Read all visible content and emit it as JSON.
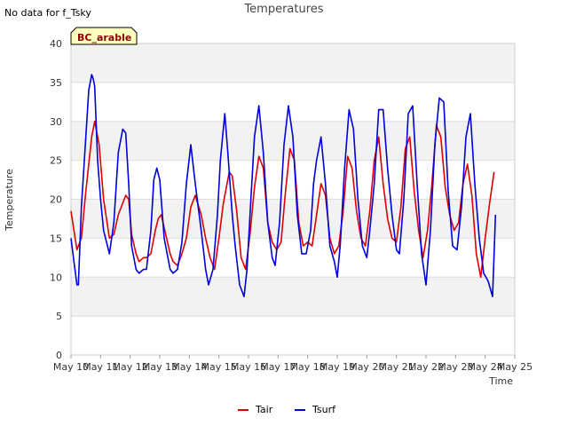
{
  "header": {
    "no_data_message": "No data for f_Tsky",
    "site_badge": "BC_arable"
  },
  "chart_data": {
    "type": "line",
    "title": "Temperatures",
    "xlabel": "Time",
    "ylabel": "Temperature",
    "ylim": [
      0,
      40
    ],
    "yticks": [
      0,
      5,
      10,
      15,
      20,
      25,
      30,
      35,
      40
    ],
    "xlim": [
      10,
      25
    ],
    "xticks": [
      10,
      11,
      12,
      13,
      14,
      15,
      16,
      17,
      18,
      19,
      20,
      21,
      22,
      23,
      24,
      25
    ],
    "xtick_labels": [
      "May 10",
      "May 11",
      "May 12",
      "May 13",
      "May 14",
      "May 15",
      "May 16",
      "May 17",
      "May 18",
      "May 19",
      "May 20",
      "May 21",
      "May 22",
      "May 23",
      "May 24",
      "May 25"
    ],
    "grid": true,
    "legend_position": "bottom-center",
    "series": [
      {
        "name": "Tair",
        "color": "#dd0000",
        "x": [
          10.0,
          10.1,
          10.2,
          10.35,
          10.5,
          10.6,
          10.7,
          10.8,
          10.95,
          11.1,
          11.3,
          11.45,
          11.6,
          11.75,
          11.85,
          11.95,
          12.05,
          12.2,
          12.3,
          12.45,
          12.55,
          12.7,
          12.85,
          12.95,
          13.05,
          13.2,
          13.35,
          13.45,
          13.6,
          13.75,
          13.9,
          14.05,
          14.2,
          14.4,
          14.55,
          14.7,
          14.85,
          15.0,
          15.15,
          15.35,
          15.45,
          15.6,
          15.75,
          15.9,
          16.05,
          16.2,
          16.35,
          16.5,
          16.65,
          16.8,
          16.95,
          17.1,
          17.25,
          17.4,
          17.55,
          17.7,
          17.85,
          18.0,
          18.15,
          18.3,
          18.45,
          18.6,
          18.75,
          18.9,
          19.05,
          19.2,
          19.35,
          19.5,
          19.65,
          19.8,
          19.95,
          20.1,
          20.25,
          20.4,
          20.55,
          20.7,
          20.85,
          21.0,
          21.15,
          21.3,
          21.45,
          21.6,
          21.75,
          21.9,
          22.05,
          22.2,
          22.35,
          22.5,
          22.65,
          22.8,
          22.95,
          23.1,
          23.25,
          23.4,
          23.55,
          23.7,
          23.85,
          24.0,
          24.15,
          24.3
        ],
        "y": [
          18.5,
          16.0,
          13.5,
          15.0,
          21.0,
          24.5,
          28.0,
          30.0,
          27.0,
          20.0,
          15.0,
          15.5,
          18.0,
          19.5,
          20.5,
          20.0,
          15.5,
          13.0,
          12.0,
          12.5,
          12.5,
          13.0,
          16.0,
          17.5,
          18.0,
          15.5,
          13.0,
          12.0,
          11.5,
          13.0,
          15.0,
          19.0,
          20.5,
          18.0,
          15.0,
          12.5,
          11.0,
          15.0,
          19.5,
          23.5,
          23.0,
          18.5,
          12.5,
          11.0,
          15.5,
          21.5,
          25.5,
          24.0,
          17.0,
          14.5,
          13.5,
          14.5,
          21.0,
          26.5,
          25.0,
          17.0,
          14.0,
          14.5,
          14.0,
          18.0,
          22.0,
          20.5,
          15.0,
          13.0,
          14.0,
          18.5,
          25.5,
          24.0,
          18.5,
          15.0,
          14.0,
          18.5,
          25.0,
          28.0,
          22.0,
          17.5,
          15.0,
          14.5,
          19.0,
          26.5,
          28.0,
          21.0,
          16.0,
          12.5,
          16.0,
          22.0,
          29.5,
          28.0,
          21.5,
          18.0,
          16.0,
          17.0,
          22.0,
          24.5,
          20.5,
          13.0,
          10.0,
          15.0,
          19.5,
          23.5
        ]
      },
      {
        "name": "Tsurf",
        "color": "#0000dd",
        "x": [
          10.0,
          10.1,
          10.2,
          10.25,
          10.35,
          10.5,
          10.6,
          10.7,
          10.75,
          10.8,
          10.9,
          11.0,
          11.1,
          11.3,
          11.45,
          11.6,
          11.75,
          11.85,
          11.95,
          12.05,
          12.2,
          12.3,
          12.45,
          12.55,
          12.7,
          12.8,
          12.9,
          13.0,
          13.15,
          13.35,
          13.45,
          13.6,
          13.75,
          13.9,
          14.05,
          14.2,
          14.4,
          14.55,
          14.65,
          14.8,
          14.95,
          15.05,
          15.2,
          15.3,
          15.45,
          15.55,
          15.7,
          15.85,
          15.95,
          16.05,
          16.2,
          16.35,
          16.5,
          16.65,
          16.8,
          16.9,
          17.05,
          17.2,
          17.35,
          17.5,
          17.65,
          17.8,
          17.95,
          18.1,
          18.2,
          18.3,
          18.45,
          18.6,
          18.75,
          18.9,
          19.0,
          19.1,
          19.25,
          19.4,
          19.55,
          19.7,
          19.85,
          20.0,
          20.1,
          20.25,
          20.4,
          20.55,
          20.7,
          20.85,
          21.0,
          21.1,
          21.25,
          21.4,
          21.55,
          21.7,
          21.85,
          22.0,
          22.15,
          22.3,
          22.45,
          22.6,
          22.75,
          22.9,
          23.05,
          23.2,
          23.35,
          23.5,
          23.65,
          23.8,
          23.95,
          24.1,
          24.25,
          24.35
        ],
        "y": [
          15.0,
          12.0,
          9.0,
          9.0,
          19.0,
          28.0,
          34.0,
          36.0,
          35.5,
          34.5,
          25.0,
          20.0,
          16.0,
          13.0,
          17.0,
          26.0,
          29.0,
          28.5,
          22.0,
          14.0,
          11.0,
          10.5,
          11.0,
          11.0,
          16.0,
          22.5,
          24.0,
          22.5,
          15.0,
          11.0,
          10.5,
          11.0,
          14.5,
          22.0,
          27.0,
          22.0,
          16.0,
          11.0,
          9.0,
          11.0,
          18.0,
          25.0,
          31.0,
          26.0,
          18.0,
          14.0,
          9.0,
          7.5,
          11.0,
          18.0,
          28.0,
          32.0,
          26.0,
          17.0,
          12.5,
          11.5,
          17.0,
          27.0,
          32.0,
          28.0,
          18.0,
          13.0,
          13.0,
          16.0,
          22.0,
          25.0,
          28.0,
          22.0,
          14.0,
          12.0,
          10.0,
          14.0,
          24.0,
          31.5,
          29.0,
          20.0,
          14.0,
          12.5,
          16.0,
          22.0,
          31.5,
          31.5,
          24.0,
          18.0,
          13.5,
          13.0,
          20.0,
          31.0,
          32.0,
          22.0,
          13.0,
          9.0,
          16.0,
          27.0,
          33.0,
          32.5,
          21.0,
          14.0,
          13.5,
          19.0,
          28.0,
          31.0,
          22.0,
          15.0,
          10.5,
          9.5,
          7.5,
          18.0
        ]
      }
    ]
  }
}
